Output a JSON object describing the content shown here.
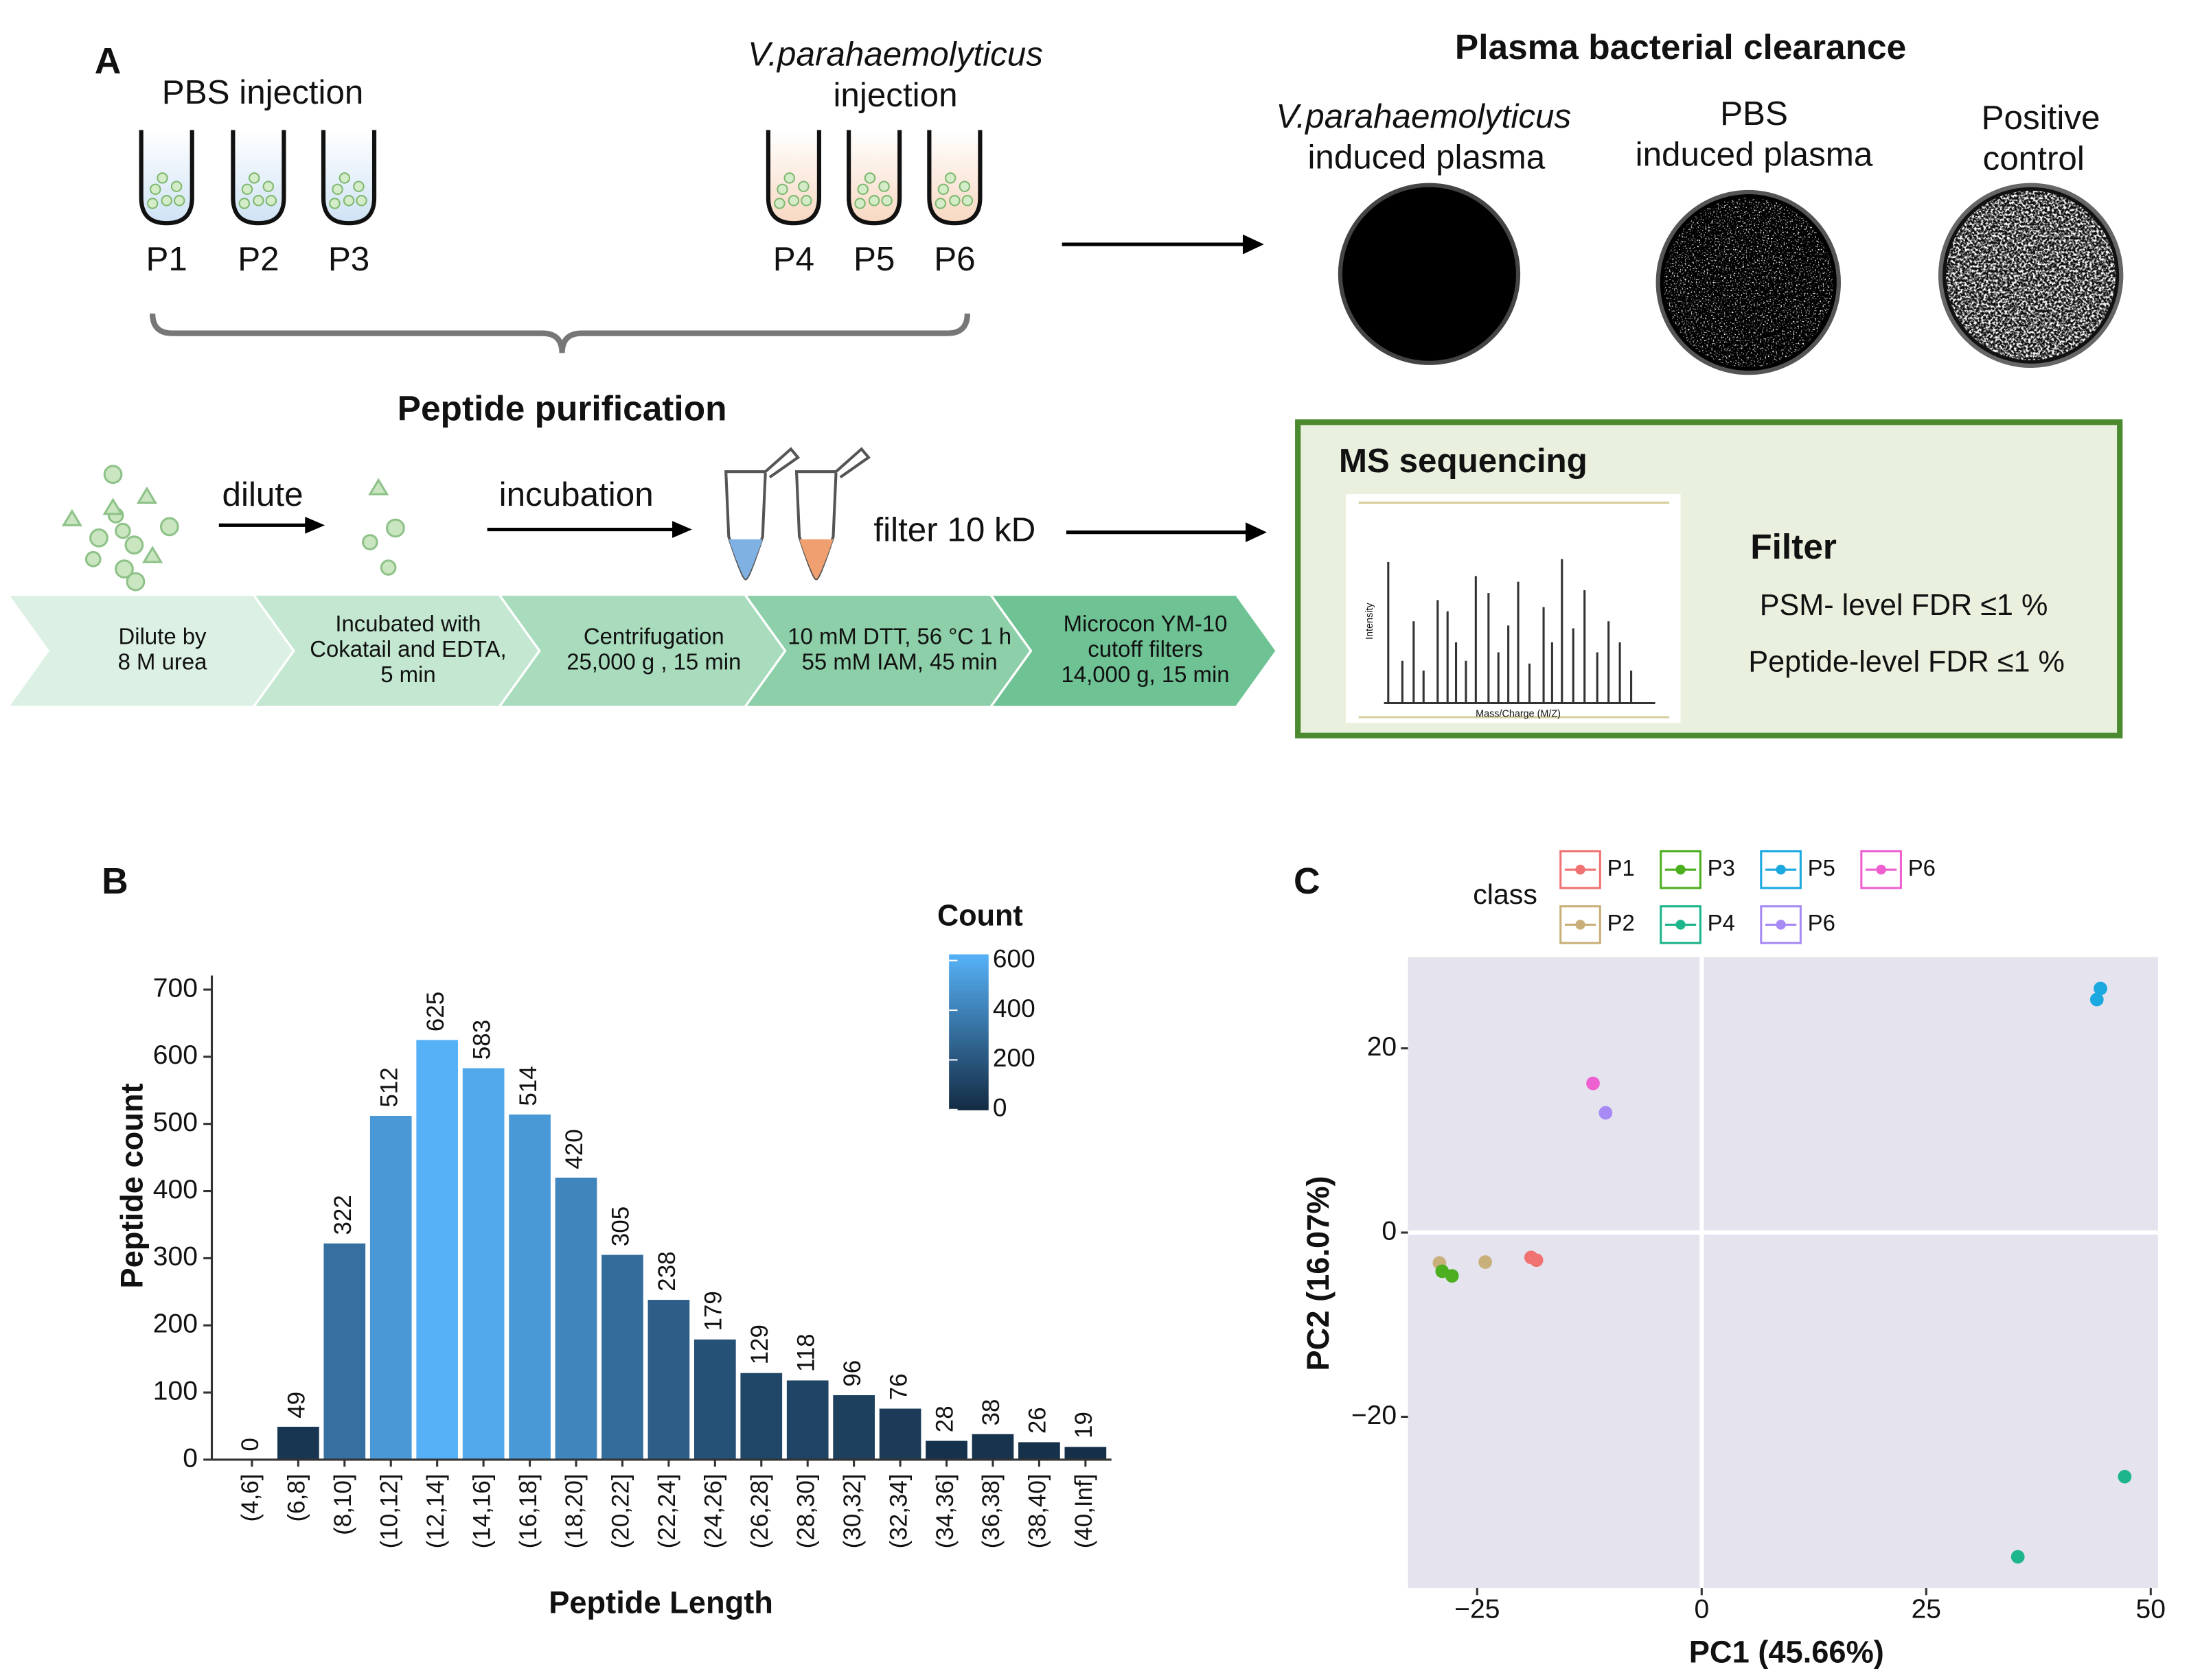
{
  "panel_a": {
    "label": "A",
    "pbs": {
      "title": "PBS injection",
      "tubes": [
        "P1",
        "P2",
        "P3"
      ]
    },
    "vp": {
      "title": "V.parahaemolyticus",
      "subtitle": "injection",
      "tubes": [
        "P4",
        "P5",
        "P6"
      ]
    },
    "clearance": {
      "title": "Plasma bacterial clearance",
      "plates": [
        [
          "V.parahaemolyticus",
          "induced plasma"
        ],
        [
          "PBS",
          "induced plasma"
        ],
        [
          "Positive",
          "control"
        ]
      ]
    },
    "purification": {
      "title": "Peptide purification",
      "steps": [
        "dilute",
        "incubation",
        "filter 10 kD"
      ],
      "stages": [
        [
          "Dilute by",
          "8 M urea"
        ],
        [
          "Incubated with",
          "Cokatail and EDTA,",
          "5 min"
        ],
        [
          "Centrifugation",
          "25,000 g , 15 min"
        ],
        [
          "10 mM DTT, 56 °C 1 h",
          "55 mM IAM, 45 min"
        ],
        [
          "Microcon YM-10",
          "cutoff filters",
          "14,000 g, 15 min"
        ]
      ]
    },
    "ms": {
      "title": "MS sequencing",
      "y_label": "Intensity",
      "x_label": "Mass/Charge (M/Z)",
      "filter_title": "Filter",
      "criteria": [
        "PSM- level FDR ≤1 %",
        "Peptide-level FDR ≤1 %"
      ]
    }
  },
  "chart_data": [
    {
      "type": "bar",
      "label": "B",
      "x_label": "Peptide Length",
      "y_label": "Peptide count",
      "categories": [
        "(4,6]",
        "(6,8]",
        "(8,10]",
        "(10,12]",
        "(12,14]",
        "(14,16]",
        "(16,18]",
        "(18,20]",
        "(20,22]",
        "(22,24]",
        "(24,26]",
        "(26,28]",
        "(28,30]",
        "(30,32]",
        "(32,34]",
        "(34,36]",
        "(36,38]",
        "(38,40]",
        "(40,Inf]"
      ],
      "values": [
        0,
        49,
        322,
        512,
        625,
        583,
        514,
        420,
        305,
        238,
        179,
        129,
        118,
        96,
        76,
        28,
        38,
        26,
        19
      ],
      "ylim": [
        0,
        700
      ],
      "yticks": [
        0,
        100,
        200,
        300,
        400,
        500,
        600,
        700
      ],
      "fill_scale": {
        "low": "#132B43",
        "high": "#56B1F7"
      },
      "legend": {
        "title": "Count",
        "lim": [
          0,
          625
        ],
        "ticks": [
          0,
          200,
          400,
          600
        ]
      }
    },
    {
      "type": "scatter",
      "label": "C",
      "x_label": "PC1 (45.66%)",
      "y_label": "PC2 (16.07%)",
      "legend_title": "class",
      "xlim": [
        -32.7,
        50.8
      ],
      "ylim": [
        -38.6,
        29.9
      ],
      "xticks": [
        {
          "value": -25,
          "label": "−25"
        },
        0,
        25,
        50
      ],
      "yticks": [
        {
          "value": -20,
          "label": "−20"
        },
        0,
        20
      ],
      "zero_lines": true,
      "series": [
        {
          "name": "P1",
          "color": "#f07272",
          "x": [
            -19,
            -18.4
          ],
          "values": [
            -2.7,
            -3
          ]
        },
        {
          "name": "P2",
          "color": "#c9b07a",
          "x": [
            -29.2,
            -24.1
          ],
          "values": [
            -3.3,
            -3.2
          ]
        },
        {
          "name": "P3",
          "color": "#4caf1f",
          "x": [
            -28.9,
            -27.8
          ],
          "values": [
            -4.2,
            -4.7
          ]
        },
        {
          "name": "P4",
          "color": "#1db58c",
          "x": [
            47.1,
            35.2
          ],
          "values": [
            -26.5,
            -35.2
          ]
        },
        {
          "name": "P5",
          "color": "#1ba9e0",
          "x": [
            44,
            44.4
          ],
          "values": [
            25.3,
            26.5
          ]
        },
        {
          "name": "P6",
          "color": "#a88af4",
          "x": [
            -10.7
          ],
          "values": [
            13
          ]
        },
        {
          "name": "P6",
          "color": "#ee5fd0",
          "x": [
            -12.1
          ],
          "values": [
            16.2
          ]
        }
      ]
    }
  ]
}
